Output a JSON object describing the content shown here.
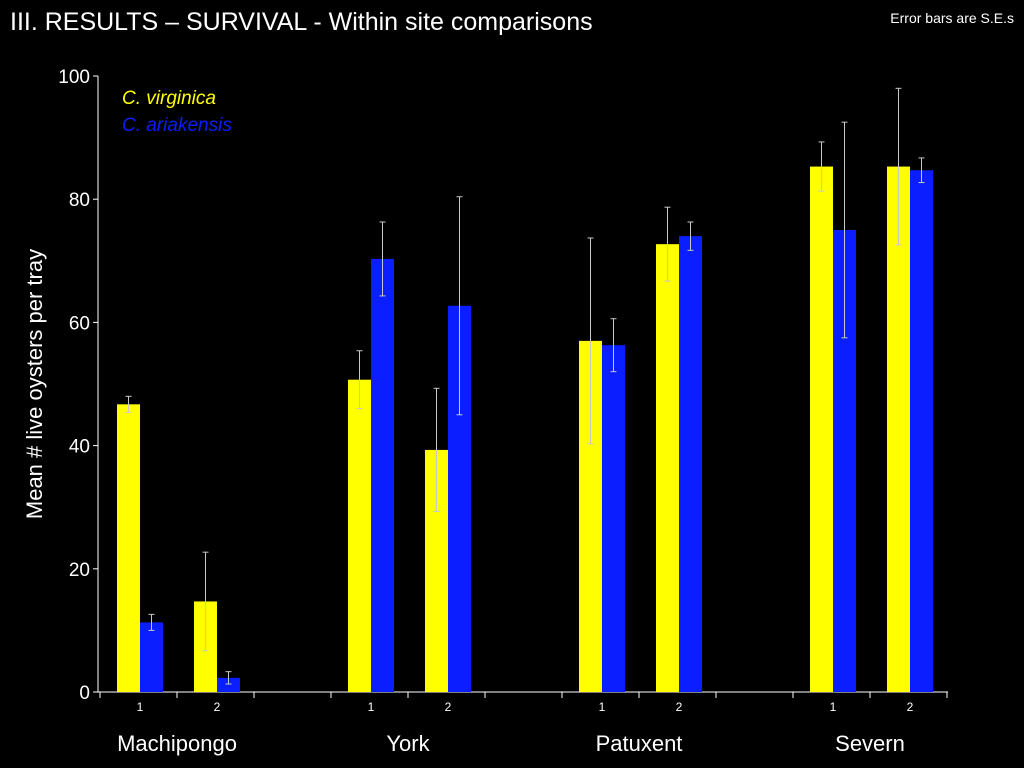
{
  "header": {
    "title": "III.  RESULTS –  SURVIVAL - Within site comparisons",
    "note": "Error bars are S.E.s"
  },
  "colors": {
    "background": "#000000",
    "virginica": "#ffff00",
    "ariakensis": "#0a1eff",
    "axis": "#ffffff",
    "error_bar": "#c8c8c8"
  },
  "chart_data": {
    "type": "bar",
    "title": "",
    "ylabel": "Mean # live oysters per tray",
    "xlabel": "",
    "ylim": [
      0,
      100
    ],
    "yticks": [
      0,
      20,
      40,
      60,
      80,
      100
    ],
    "legend": {
      "placement": "top-left",
      "entries": [
        "C. virginica",
        "C. ariakensis"
      ]
    },
    "groups": [
      "Machipongo",
      "York",
      "Patuxent",
      "Severn"
    ],
    "subcategories": [
      "1",
      "2"
    ],
    "series": [
      {
        "name": "C. virginica",
        "values": [
          [
            46.7,
            14.7
          ],
          [
            50.7,
            39.3
          ],
          [
            57.0,
            72.7
          ],
          [
            85.3,
            85.3
          ]
        ],
        "se": [
          [
            1.3,
            8.0
          ],
          [
            4.7,
            10.0
          ],
          [
            16.7,
            6.0
          ],
          [
            4.0,
            12.7
          ]
        ]
      },
      {
        "name": "C. ariakensis",
        "values": [
          [
            11.3,
            2.3
          ],
          [
            70.3,
            62.7
          ],
          [
            56.3,
            74.0
          ],
          [
            75.0,
            84.7
          ]
        ],
        "se": [
          [
            1.3,
            1.0
          ],
          [
            6.0,
            17.7
          ],
          [
            4.3,
            2.3
          ],
          [
            17.5,
            2.0
          ]
        ]
      }
    ]
  }
}
